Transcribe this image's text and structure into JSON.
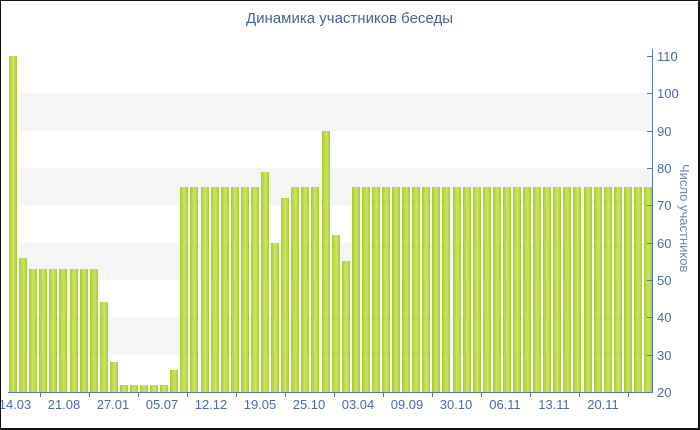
{
  "window": {
    "background": "#ffffff",
    "border_color": "#121212"
  },
  "chart_data": {
    "type": "bar",
    "title": "Динамика участников беседы",
    "xlabel": "",
    "ylabel": "Число участников",
    "x_labels": [
      "14.03",
      "21.08",
      "27.01",
      "05.07",
      "12.12",
      "19.05",
      "25.10",
      "03.04",
      "09.09",
      "30.10",
      "06.11",
      "13.11",
      "20.11"
    ],
    "y_ticks": [
      20,
      30,
      40,
      50,
      60,
      70,
      80,
      90,
      100,
      110
    ],
    "ylim": [
      20,
      110
    ],
    "grid": "alternating-horizontal-stripes",
    "legend": "none",
    "y_axis_position": "right",
    "values": [
      110,
      56,
      53,
      53,
      53,
      53,
      53,
      53,
      53,
      44,
      28,
      22,
      22,
      22,
      22,
      22,
      26,
      75,
      75,
      75,
      75,
      75,
      75,
      75,
      75,
      79,
      60,
      72,
      75,
      75,
      75,
      90,
      62,
      55,
      75,
      75,
      75,
      75,
      75,
      75,
      75,
      75,
      75,
      75,
      75,
      75,
      75,
      75,
      75,
      75,
      75,
      75,
      75,
      75,
      75,
      75,
      75,
      75,
      75,
      75,
      75,
      75,
      75,
      75
    ]
  },
  "colors": {
    "bar": "#b5d435",
    "bar_edge": "#a8cd2c",
    "bar_highlight": "#cde468",
    "axis": "#5b74b8",
    "tick_text": "#4e69a8",
    "title_text": "#46619e",
    "y_axis_title_text": "#7386bb",
    "stripe": "#f5f5f6"
  }
}
